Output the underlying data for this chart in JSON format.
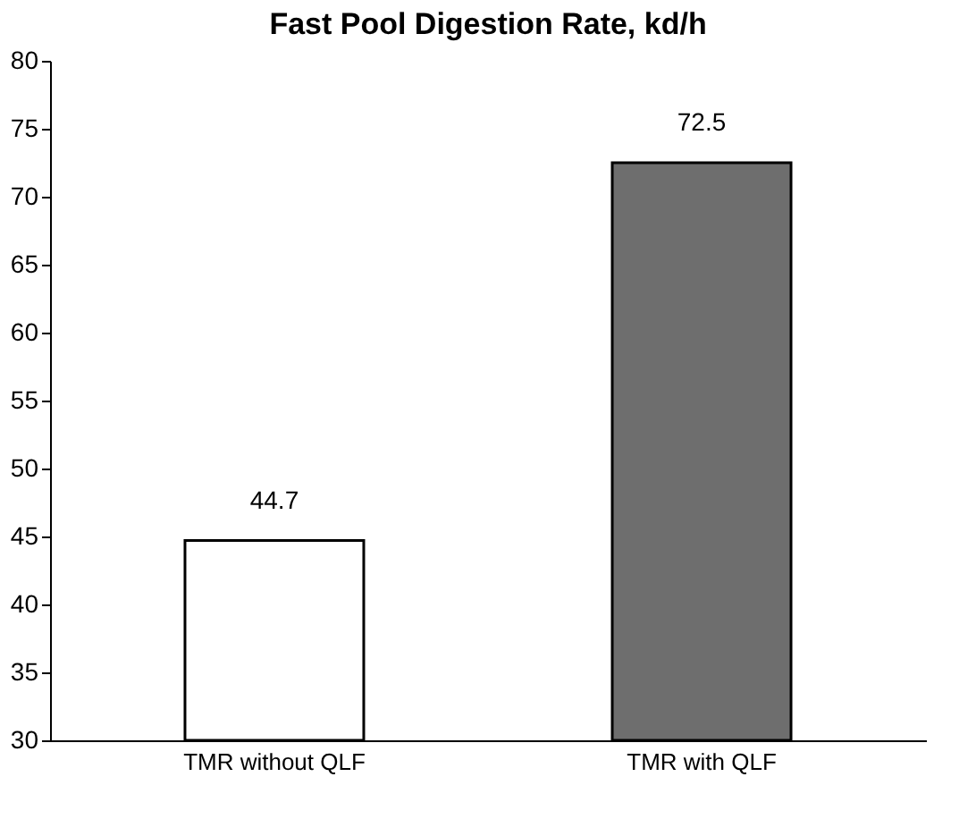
{
  "chart_data": {
    "type": "bar",
    "title": "Fast Pool Digestion Rate, kd/h",
    "categories": [
      "TMR without QLF",
      "TMR with QLF"
    ],
    "values": [
      44.7,
      72.5
    ],
    "colors": [
      "#ffffff",
      "#6e6e6e"
    ],
    "ylim": [
      30,
      80
    ],
    "yticks": [
      30,
      35,
      40,
      45,
      50,
      55,
      60,
      65,
      70,
      75,
      80
    ],
    "grid": false,
    "data_labels": true
  }
}
